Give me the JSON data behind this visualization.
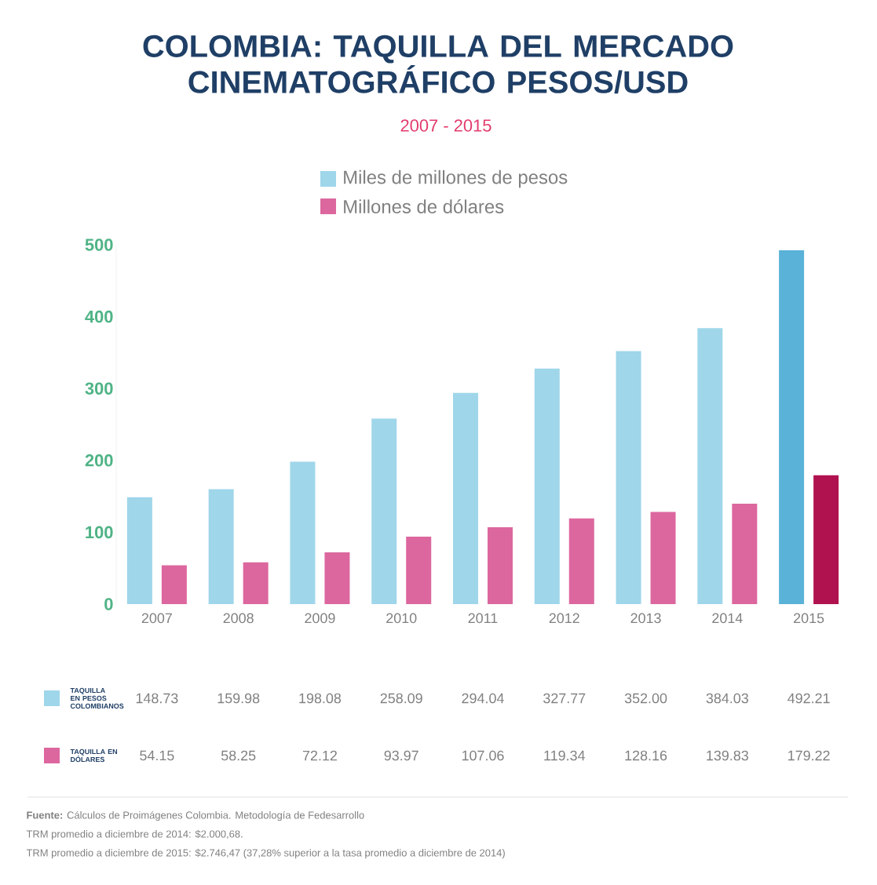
{
  "chart_data": {
    "type": "bar",
    "title": "COLOMBIA: TAQUILLA DEL MERCADO CINEMATOGRÁFICO PESOS/USD",
    "subtitle": "2007 - 2015",
    "categories": [
      "2007",
      "2008",
      "2009",
      "2010",
      "2011",
      "2012",
      "2013",
      "2014",
      "2015"
    ],
    "series": [
      {
        "name": "Miles de millones de pesos",
        "color": "#9fd6ea",
        "colors": [
          "#9fd6ea",
          "#9fd6ea",
          "#9fd6ea",
          "#9fd6ea",
          "#9fd6ea",
          "#9fd6ea",
          "#9fd6ea",
          "#9fd6ea",
          "#5ab2d8"
        ],
        "values": [
          148.73,
          159.98,
          198.08,
          258.09,
          294.04,
          327.77,
          352.0,
          384.03,
          492.21
        ],
        "value_labels": [
          "148.73",
          "159.98",
          "198.08",
          "258.09",
          "294.04",
          "327.77",
          "352.00",
          "384.03",
          "492.21"
        ]
      },
      {
        "name": "Millones de dólares",
        "color": "#dc679e",
        "colors": [
          "#dc679e",
          "#dc679e",
          "#dc679e",
          "#dc679e",
          "#dc679e",
          "#dc679e",
          "#dc679e",
          "#dc679e",
          "#b0124f"
        ],
        "values": [
          54.15,
          58.25,
          72.12,
          93.97,
          107.06,
          119.34,
          128.16,
          139.83,
          179.22
        ],
        "value_labels": [
          "54.15",
          "58.25",
          "72.12",
          "93.97",
          "107.06",
          "119.34",
          "128.16",
          "139.83",
          "179.22"
        ]
      }
    ],
    "ylim": [
      0,
      500
    ],
    "yticks": [
      0,
      100,
      200,
      300,
      400,
      500
    ],
    "grid": false,
    "legend": "top",
    "annotations": [
      "TAQUILLA EN PESOS COLOMBIANOS",
      "TAQUILLA EN DÓLARES",
      "**Fuente:** Cálculos de Proimágenes Colombia. Metodología de Fedesarrollo",
      "TRM promedio a diciembre de 2014: $2.000,68.",
      "TRM promedio a diciembre de 2015: $2.746,47 (37,28% superior a la tasa promedio a diciembre de 2014)"
    ]
  }
}
